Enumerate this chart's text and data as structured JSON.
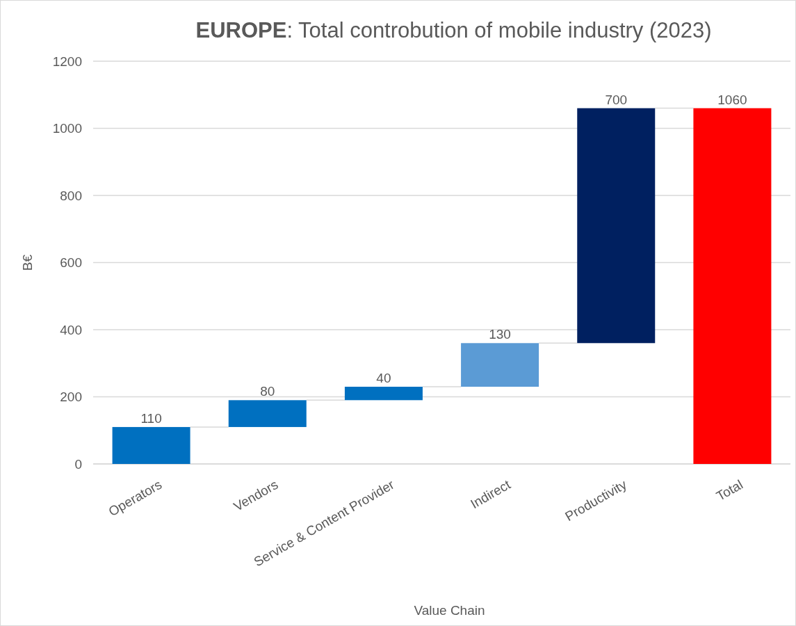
{
  "chart_data": {
    "type": "bar",
    "title": "EUROPE: Total controbution of mobile industry (2023)",
    "xlabel": "Value Chain",
    "ylabel": "B€",
    "categories": [
      "Operators",
      "Vendors",
      "Service & Content Provider",
      "Indirect",
      "Productivity",
      "Total"
    ],
    "values": [
      110,
      80,
      40,
      130,
      700,
      1060
    ],
    "base": [
      0,
      110,
      190,
      230,
      360,
      0
    ],
    "colors": [
      "#0070c0",
      "#0070c0",
      "#0070c0",
      "#5b9bd5",
      "#002060",
      "#ff0000"
    ],
    "ylim": [
      0,
      1200
    ],
    "yticks": [
      0,
      200,
      400,
      600,
      800,
      1000,
      1200
    ],
    "grid": "y",
    "data_labels": true
  }
}
